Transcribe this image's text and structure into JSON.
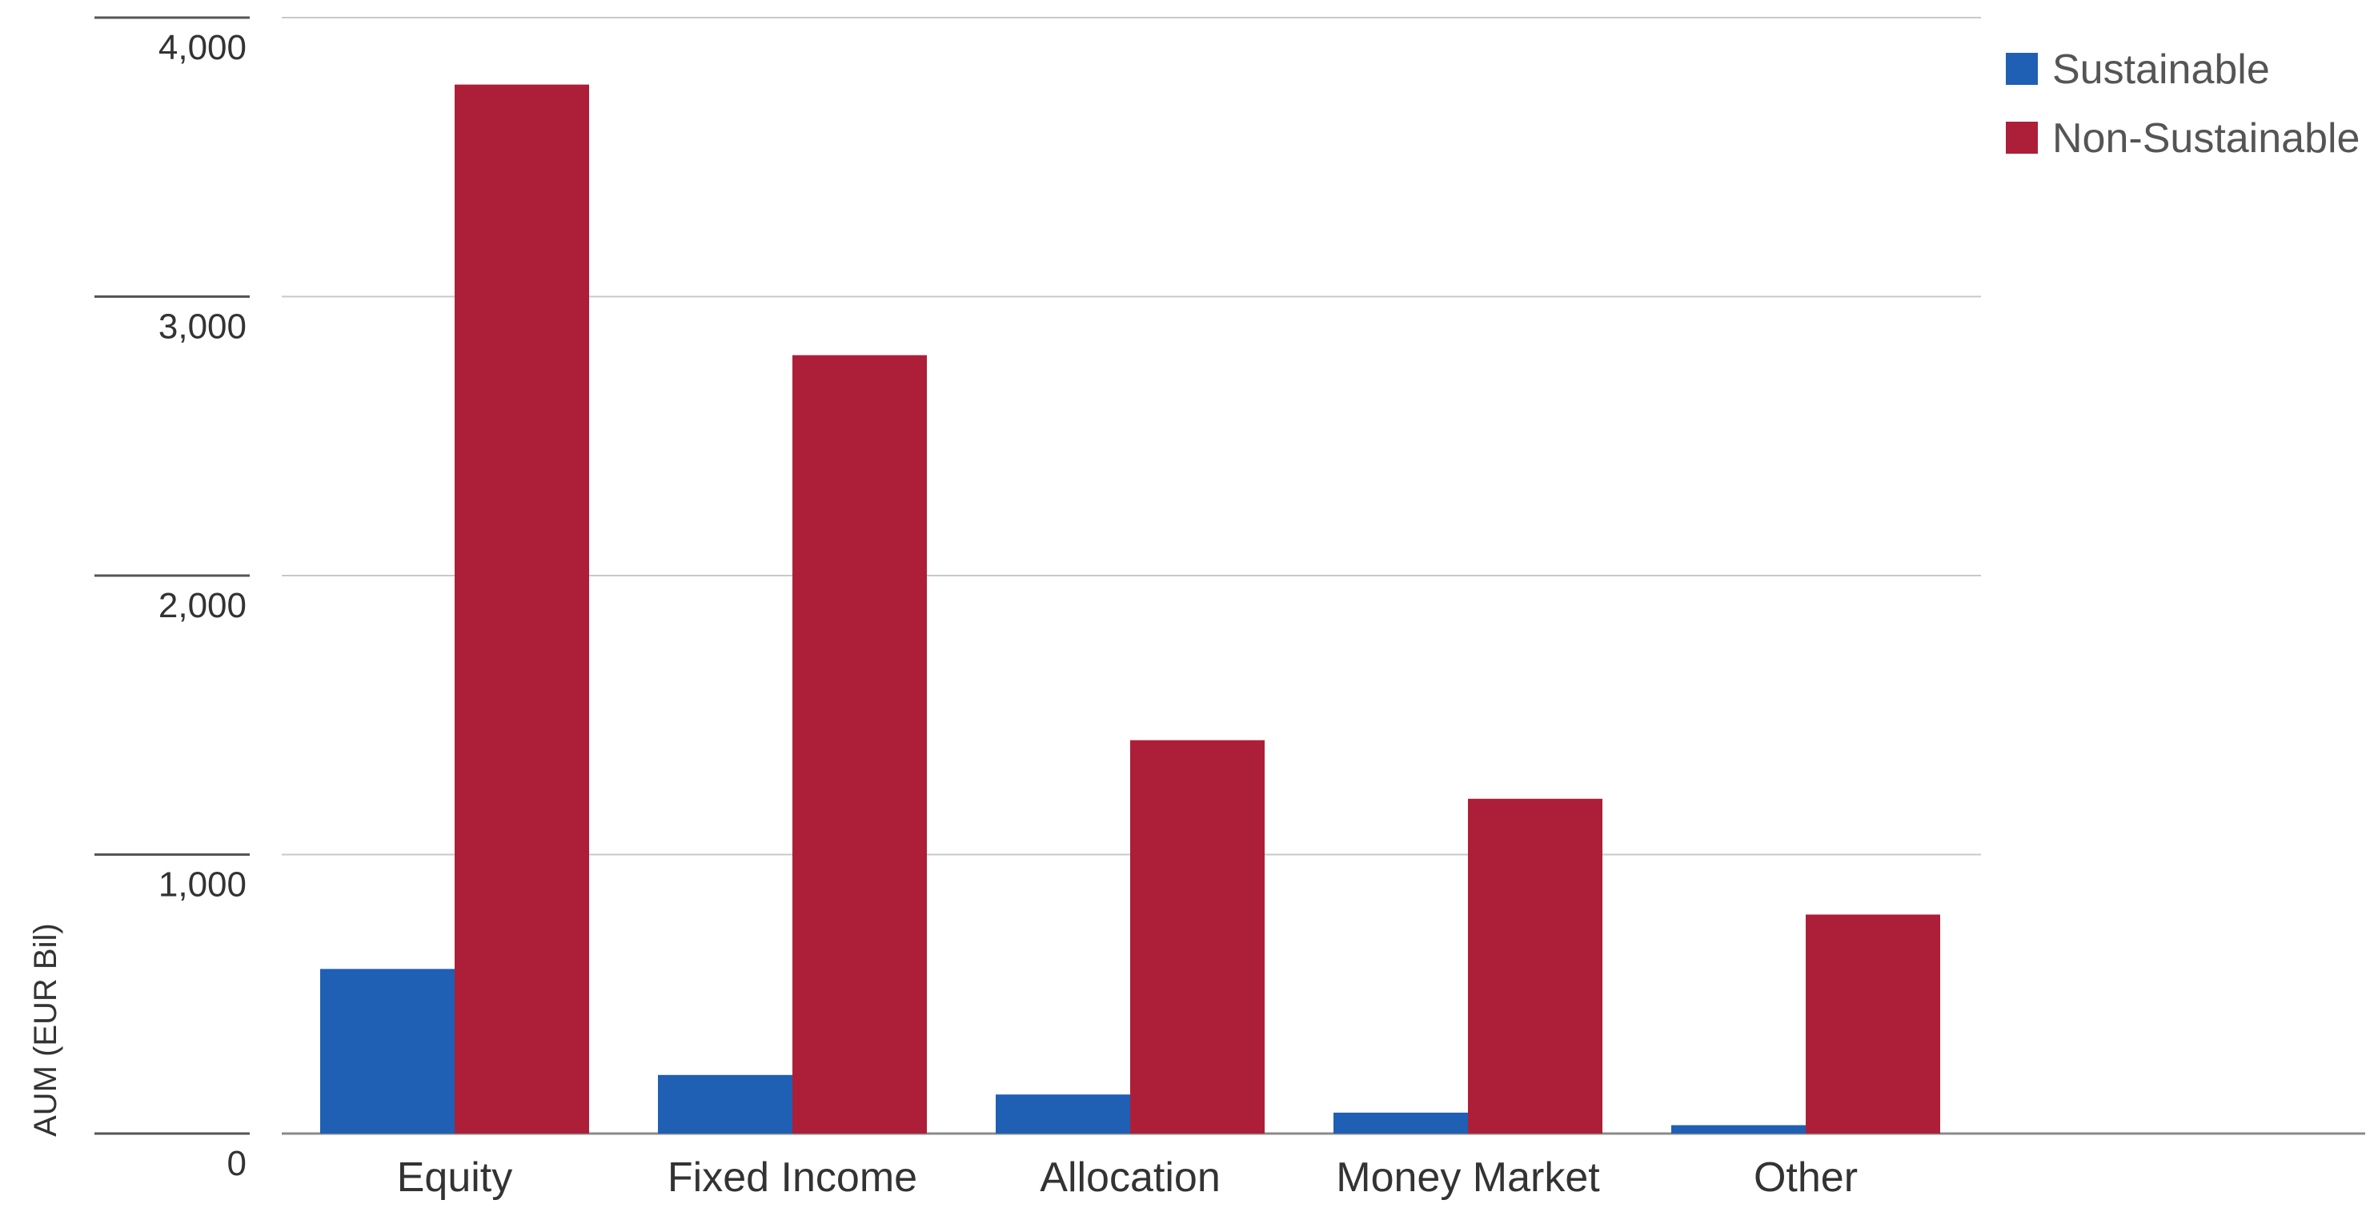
{
  "chart_data": {
    "type": "bar",
    "title": "",
    "xlabel": "",
    "ylabel": "AUM (EUR Bil)",
    "ylim": [
      0,
      4000
    ],
    "yticks": [
      0,
      1000,
      2000,
      3000,
      4000
    ],
    "ytick_labels": [
      "0",
      "1,000",
      "2,000",
      "3,000",
      "4,000"
    ],
    "grid": true,
    "legend_position": "top-right",
    "categories": [
      "Equity",
      "Fixed Income",
      "Allocation",
      "Money Market",
      "Other"
    ],
    "series": [
      {
        "name": "Sustainable",
        "color": "#1f5fb4",
        "values": [
          590,
          210,
          140,
          75,
          30
        ]
      },
      {
        "name": "Non-Sustainable",
        "color": "#ad1f38",
        "values": [
          3760,
          2790,
          1410,
          1200,
          785
        ]
      }
    ]
  }
}
